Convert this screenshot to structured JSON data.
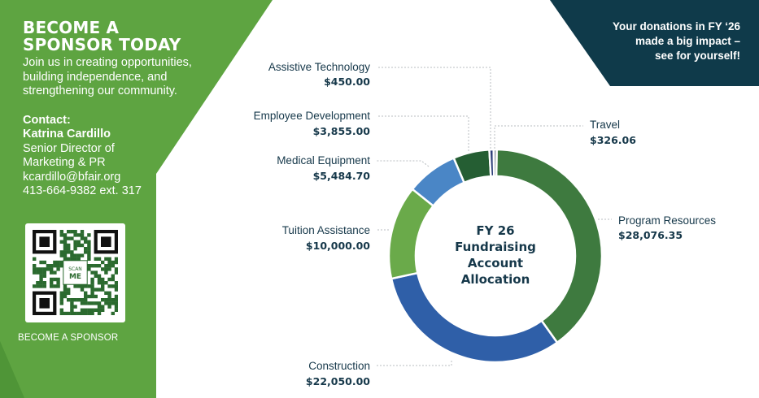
{
  "sponsor": {
    "heading_line1": "BECOME A",
    "heading_line2": "SPONSOR TODAY",
    "intro": "Join us in creating opportunities, building independence, and strengthening our community.",
    "contact_heading": "Contact:",
    "contact_name": "Katrina Cardillo",
    "contact_title_line1": "Senior Director of",
    "contact_title_line2": "Marketing & PR",
    "contact_email": "kcardillo@bfair.org",
    "contact_phone": "413-664-9382 ext. 317",
    "qr_scan_label": "SCAN ME",
    "qr_caption": "BECOME A SPONSOR"
  },
  "banner": {
    "line1": "Your donations in FY ‘26",
    "line2": "made a big impact –",
    "line3": "see for yourself!"
  },
  "colors": {
    "green_panel": "#5ea441",
    "navy_banner": "#0f3a4a",
    "text_navy": "#16384a"
  },
  "chart_data": {
    "type": "pie",
    "subtype": "donut",
    "center_title_lines": [
      "FY 26",
      "Fundraising",
      "Account",
      "Allocation"
    ],
    "slices": [
      {
        "label": "Program Resources",
        "value": 28076.35,
        "value_label": "$28,076.35",
        "color": "#3e7a3f"
      },
      {
        "label": "Construction",
        "value": 22050.0,
        "value_label": "$22,050.00",
        "color": "#2f5fa8"
      },
      {
        "label": "Tuition Assistance",
        "value": 10000.0,
        "value_label": "$10,000.00",
        "color": "#6aaa4a"
      },
      {
        "label": "Medical Equipment",
        "value": 5484.7,
        "value_label": "$5,484.70",
        "color": "#4a86c6"
      },
      {
        "label": "Employee Development",
        "value": 3855.0,
        "value_label": "$3,855.00",
        "color": "#255e33"
      },
      {
        "label": "Assistive Technology",
        "value": 450.0,
        "value_label": "$450.00",
        "color": "#2e3f7a"
      },
      {
        "label": "Travel",
        "value": 326.06,
        "value_label": "$326.06",
        "color": "#7c8794"
      }
    ],
    "legend": "none"
  }
}
